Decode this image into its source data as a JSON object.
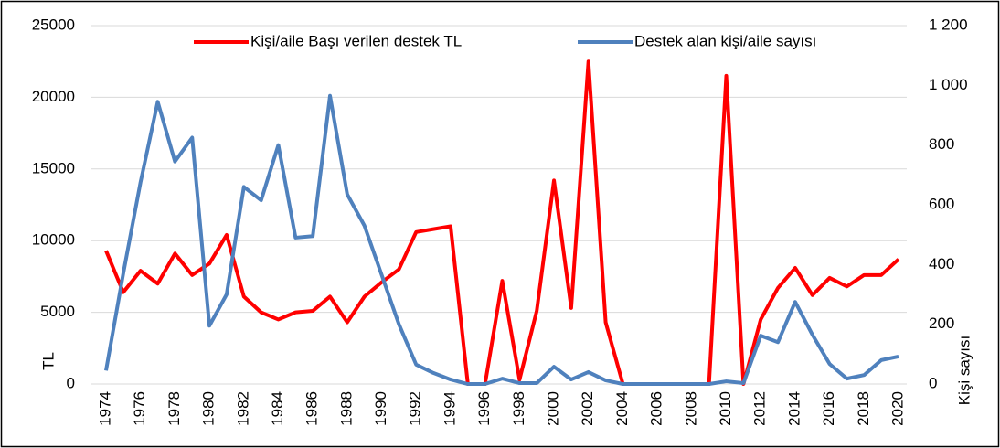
{
  "chart_data": {
    "type": "line",
    "categories": [
      "1974",
      null,
      "1976",
      null,
      "1978",
      null,
      "1980",
      null,
      "1982",
      null,
      "1984",
      null,
      "1986",
      null,
      "1988",
      null,
      "1990",
      null,
      "1992",
      null,
      "1994",
      null,
      "1996",
      null,
      "1998",
      null,
      "2000",
      null,
      "2002",
      null,
      "2004",
      null,
      "2006",
      null,
      "2008",
      null,
      "2010",
      null,
      "2012",
      null,
      "2014",
      null,
      "2016",
      null,
      "2018",
      null,
      "2020"
    ],
    "series": [
      {
        "name": "Kişi/aile Başı verilen destek TL",
        "color": "#ff0000",
        "values": [
          9300,
          6400,
          7900,
          7000,
          9100,
          7600,
          8400,
          10400,
          6100,
          5000,
          4500,
          5000,
          5100,
          6100,
          4300,
          6100,
          7100,
          8000,
          10600,
          10800,
          11000,
          0,
          0,
          7200,
          300,
          5100,
          14200,
          5300,
          22500,
          4300,
          0,
          0,
          0,
          0,
          0,
          0,
          21500,
          0,
          4500,
          6700,
          8100,
          6200,
          7400,
          6800,
          7600,
          7600,
          8700
        ]
      },
      {
        "name": "Destek alan kişi/aile sayısı",
        "color": "#4f81bd",
        "axis": "y2",
        "values": [
          45,
          370,
          675,
          945,
          745,
          825,
          195,
          300,
          660,
          615,
          800,
          490,
          495,
          965,
          635,
          530,
          365,
          200,
          65,
          37,
          15,
          0,
          0,
          18,
          3,
          3,
          58,
          15,
          40,
          12,
          0,
          0,
          0,
          0,
          0,
          0,
          9,
          3,
          162,
          140,
          275,
          165,
          67,
          18,
          30,
          80,
          92
        ]
      }
    ],
    "ylabel": "TL",
    "y2label": "Kişi sayısı",
    "ylim": [
      0,
      25000
    ],
    "yticks": [
      0,
      5000,
      10000,
      15000,
      20000,
      25000
    ],
    "y2lim": [
      0,
      1200
    ],
    "y2ticks": [
      0,
      200,
      400,
      600,
      800,
      {
        "value": 1000,
        "label": "1 000"
      },
      {
        "value": 1200,
        "label": "1 200"
      }
    ],
    "grid": true,
    "legend": "top"
  }
}
